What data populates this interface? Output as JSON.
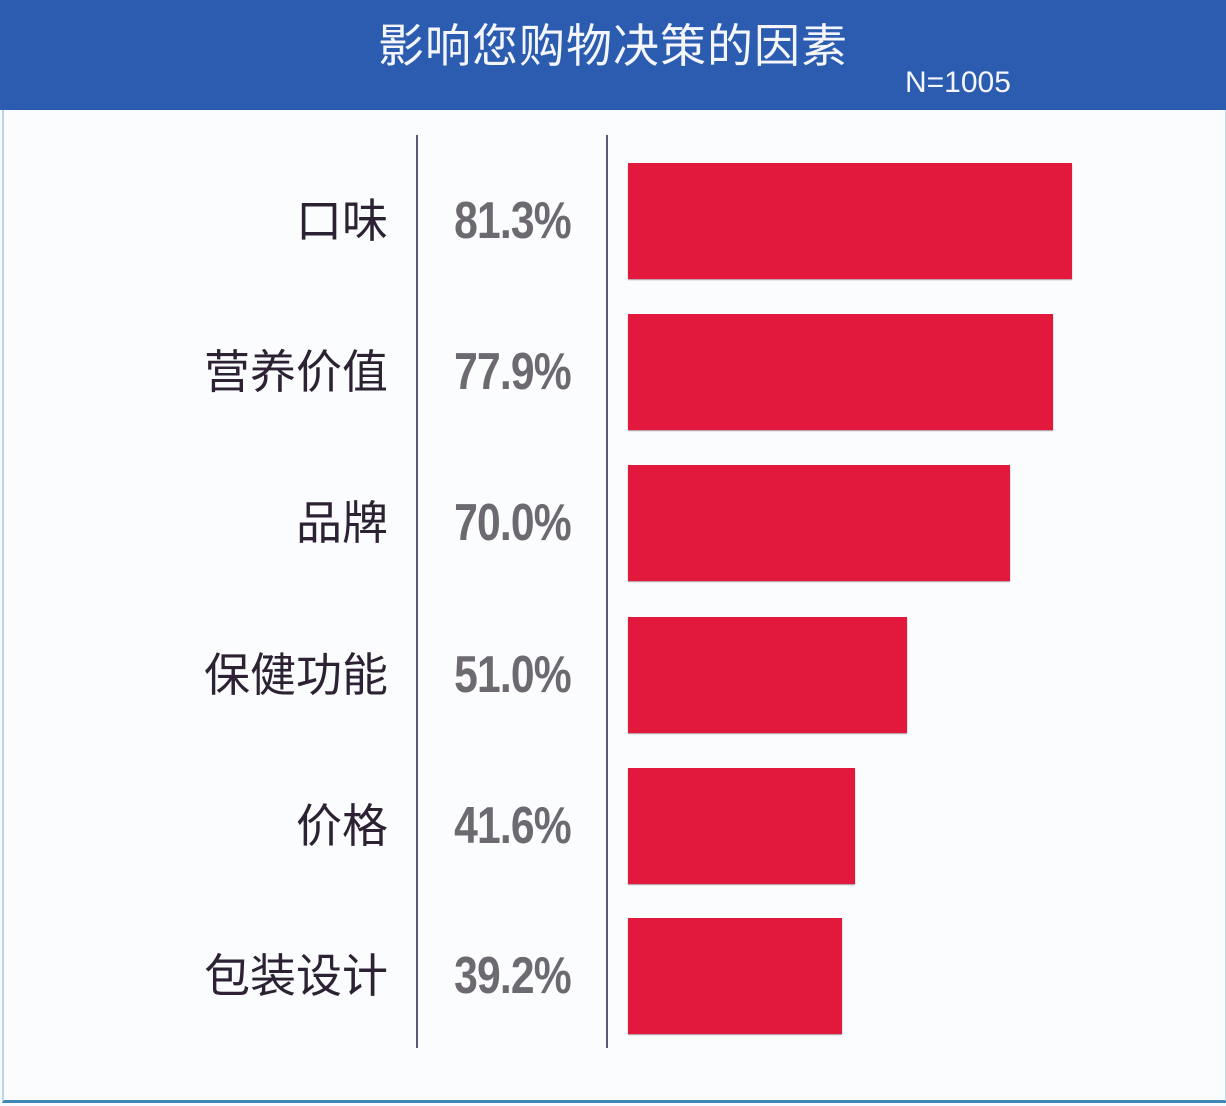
{
  "header": {
    "title": "影响您购物决策的因素",
    "sample": "N=1005",
    "background_color": "#2b5cb0"
  },
  "rows": [
    {
      "label": "口味",
      "value_text": "81.3%"
    },
    {
      "label": "营养价值",
      "value_text": "77.9%"
    },
    {
      "label": "品牌",
      "value_text": "70.0%"
    },
    {
      "label": "保健功能",
      "value_text": "51.0%"
    },
    {
      "label": "价格",
      "value_text": "41.6%"
    },
    {
      "label": "包装设计",
      "value_text": "39.2%"
    }
  ],
  "chart_data": {
    "type": "bar",
    "orientation": "horizontal",
    "title": "影响您购物决策的因素",
    "subtitle": "N=1005",
    "categories": [
      "口味",
      "营养价值",
      "品牌",
      "保健功能",
      "价格",
      "包装设计"
    ],
    "values": [
      81.3,
      77.9,
      70.0,
      51.0,
      41.6,
      39.2
    ],
    "unit": "%",
    "bar_color": "#e2183c",
    "xlabel": "",
    "ylabel": "",
    "grid": false,
    "legend": "none"
  }
}
